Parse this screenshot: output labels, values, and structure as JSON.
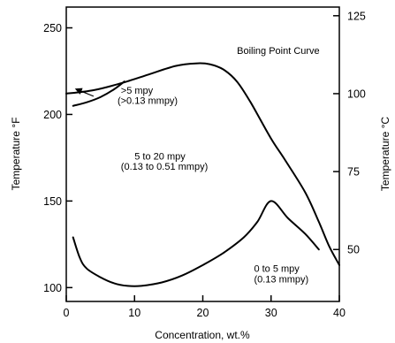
{
  "chart_data": {
    "type": "line",
    "xlabel": "Concentration, wt.%",
    "ylabel_left": "Temperature °F",
    "ylabel_right": "Temperature °C",
    "xlim": [
      0,
      40
    ],
    "ylim": [
      92,
      262
    ],
    "x_ticks": [
      0,
      10,
      20,
      30,
      40
    ],
    "y_ticks_left": [
      100,
      150,
      200,
      250
    ],
    "y_ticks_right": [
      50,
      75,
      100,
      125
    ],
    "grid": false,
    "series": [
      {
        "name": "Boiling Point Curve",
        "points": [
          [
            0,
            212
          ],
          [
            4,
            214
          ],
          [
            8,
            218
          ],
          [
            12,
            223
          ],
          [
            16,
            228
          ],
          [
            19,
            229.5
          ],
          [
            21,
            229
          ],
          [
            23,
            226
          ],
          [
            25,
            219
          ],
          [
            27,
            207
          ],
          [
            30,
            186
          ],
          [
            32,
            174
          ],
          [
            35,
            155
          ],
          [
            37,
            138
          ],
          [
            38.5,
            124
          ],
          [
            40,
            113
          ]
        ]
      },
      {
        "name": "",
        "points": [
          [
            1,
            129
          ],
          [
            2,
            117
          ],
          [
            3,
            111
          ],
          [
            5,
            106
          ],
          [
            7,
            102.5
          ],
          [
            9,
            101
          ],
          [
            11,
            101
          ],
          [
            14,
            103
          ],
          [
            17,
            107
          ],
          [
            20,
            113
          ],
          [
            23,
            120
          ],
          [
            26,
            129
          ],
          [
            28,
            138
          ],
          [
            30,
            150
          ],
          [
            32.5,
            140
          ],
          [
            35,
            131
          ],
          [
            37,
            122
          ]
        ]
      },
      {
        "name": "",
        "points": [
          [
            1,
            205
          ],
          [
            3,
            207
          ],
          [
            5,
            210
          ],
          [
            7,
            214.5
          ],
          [
            8.5,
            219
          ]
        ]
      }
    ],
    "annotations": [
      {
        "text": ">5 mpy",
        "x": 8,
        "y": 212
      },
      {
        "text": "(>0.13 mmpy)",
        "x": 7.5,
        "y": 206
      },
      {
        "text": "5 to 20 mpy",
        "x": 10,
        "y": 174
      },
      {
        "text": "(0.13 to 0.51 mmpy)",
        "x": 8,
        "y": 168
      },
      {
        "text": "0 to 5 mpy",
        "x": 27.5,
        "y": 109
      },
      {
        "text": "(0.13 mmpy)",
        "x": 27.5,
        "y": 103
      },
      {
        "text": "Boiling Point Curve",
        "x": 25,
        "y": 235
      }
    ],
    "arrow": {
      "from": [
        4,
        210.5
      ],
      "to": [
        1.5,
        214.5
      ]
    }
  }
}
